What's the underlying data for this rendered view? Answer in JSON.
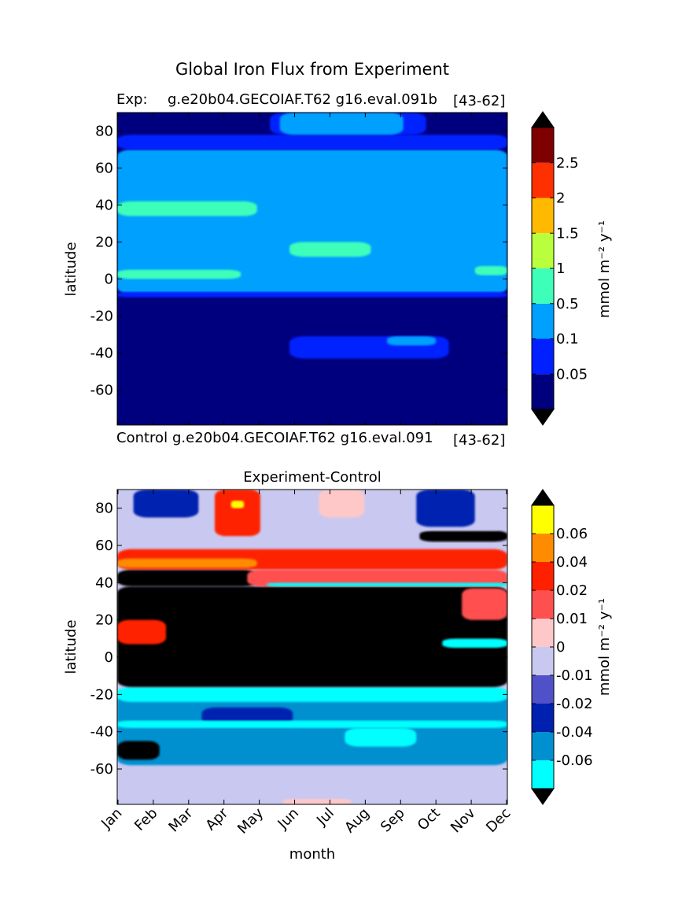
{
  "figure": {
    "suptitle": "Global Iron Flux from Experiment"
  },
  "top": {
    "exp_label": "Exp:",
    "case_name": "g.e20b04.GECOIAF.T62 g16.eval.091b",
    "years": "[43-62]"
  },
  "bottom": {
    "control_label": "Control",
    "case_name": "g.e20b04.GECOIAF.T62 g16.eval.091",
    "years": "[43-62]"
  },
  "chart_data": [
    {
      "type": "heatmap",
      "title": "",
      "xlabel": "",
      "ylabel": "latitude",
      "ylim": [
        -79,
        90
      ],
      "yticks": [
        80,
        60,
        40,
        20,
        0,
        -20,
        -40,
        -60
      ],
      "ytick_labels": [
        "80",
        "60",
        "40",
        "20",
        "0",
        "-20",
        "-40",
        "-60"
      ],
      "colorbar": {
        "label": "mmol m⁻² y⁻¹",
        "levels": [
          0.05,
          0.1,
          0.5,
          1,
          1.5,
          2,
          2.5
        ],
        "tick_labels": [
          "0.05",
          "0.1",
          "0.5",
          "1",
          "1.5",
          "2",
          "2.5"
        ],
        "colors": [
          "#00007f",
          "#0020ff",
          "#00a0ff",
          "#3dffb9",
          "#b9ff3d",
          "#ffb900",
          "#ff3000",
          "#7f0000"
        ],
        "extend": "both"
      },
      "fields": [
        {
          "level_index": 2,
          "x0": 0,
          "x1": 12,
          "y0": -8,
          "y1": 70
        },
        {
          "level_index": 1,
          "x0": 0,
          "x1": 12,
          "y0": -10,
          "y1": -7
        },
        {
          "level_index": 1,
          "x0": 0,
          "x1": 12,
          "y0": 70,
          "y1": 78
        },
        {
          "level_index": 1,
          "x0": 4.7,
          "x1": 9.5,
          "y0": 78,
          "y1": 90
        },
        {
          "level_index": 2,
          "x0": 5,
          "x1": 8.8,
          "y0": 78,
          "y1": 90
        },
        {
          "level_index": 1,
          "x0": 5.3,
          "x1": 10.2,
          "y0": -43,
          "y1": -31
        },
        {
          "level_index": 2,
          "x0": 8.3,
          "x1": 9.8,
          "y0": -36,
          "y1": -31
        },
        {
          "level_index": 3,
          "x0": 0,
          "x1": 4.3,
          "y0": 34,
          "y1": 42
        },
        {
          "level_index": 3,
          "x0": 5.3,
          "x1": 7.8,
          "y0": 12,
          "y1": 20
        },
        {
          "level_index": 3,
          "x0": 0,
          "x1": 3.8,
          "y0": 0,
          "y1": 5
        },
        {
          "level_index": 3,
          "x0": 11,
          "x1": 12,
          "y0": 2,
          "y1": 7
        }
      ]
    },
    {
      "type": "heatmap",
      "title": "Experiment-Control",
      "xlabel": "month",
      "ylabel": "latitude",
      "ylim": [
        -79,
        90
      ],
      "xticks": [
        "Jan",
        "Feb",
        "Mar",
        "Apr",
        "May",
        "Jun",
        "Jul",
        "Aug",
        "Sep",
        "Oct",
        "Nov",
        "Dec"
      ],
      "yticks": [
        80,
        60,
        40,
        20,
        0,
        -20,
        -40,
        -60
      ],
      "ytick_labels": [
        "80",
        "60",
        "40",
        "20",
        "0",
        "-20",
        "-40",
        "-60"
      ],
      "colorbar": {
        "label": "mmol m⁻² y⁻¹",
        "levels": [
          -0.06,
          -0.04,
          -0.02,
          -0.01,
          0,
          0.01,
          0.02,
          0.04,
          0.06
        ],
        "tick_labels": [
          "-0.06",
          "-0.04",
          "-0.02",
          "-0.01",
          "0",
          "0.01",
          "0.02",
          "0.04",
          "0.06"
        ],
        "colors": [
          "#00ffff",
          "#0090d0",
          "#0020b0",
          "#5050c8",
          "#c8c8f0",
          "#ffc8c8",
          "#ff5050",
          "#ff2000",
          "#ff8c00",
          "#ffff00"
        ],
        "under_color": "#000000",
        "extend": "both"
      },
      "fields": [
        {
          "level_index": 4,
          "x0": 0,
          "x1": 12,
          "y0": -79,
          "y1": -58
        },
        {
          "level_index": 5,
          "x0": 5.1,
          "x1": 7.2,
          "y0": -79,
          "y1": -76
        },
        {
          "level_index": 1,
          "x0": 0,
          "x1": 12,
          "y0": -58,
          "y1": -20
        },
        {
          "level_index": 0,
          "x0": 0,
          "x1": 12,
          "y0": -24,
          "y1": -16
        },
        {
          "level_index": 2,
          "x0": 2.6,
          "x1": 5.4,
          "y0": -36,
          "y1": -27
        },
        {
          "level_index": 0,
          "x0": 7,
          "x1": 9.2,
          "y0": -48,
          "y1": -38
        },
        {
          "level_index": 0,
          "x0": 0,
          "x1": 12,
          "y0": -38,
          "y1": -34
        },
        {
          "level_index": -1,
          "x0": 0,
          "x1": 1.3,
          "y0": -55,
          "y1": -45
        },
        {
          "level_index": -1,
          "x0": 0,
          "x1": 12,
          "y0": -16,
          "y1": 38
        },
        {
          "level_index": -1,
          "x0": 0,
          "x1": 4.3,
          "y0": 38,
          "y1": 47
        },
        {
          "level_index": -1,
          "x0": 9.3,
          "x1": 12,
          "y0": 62,
          "y1": 68
        },
        {
          "level_index": 7,
          "x0": 0,
          "x1": 12,
          "y0": 47,
          "y1": 58
        },
        {
          "level_index": 8,
          "x0": 0,
          "x1": 4.3,
          "y0": 48,
          "y1": 53
        },
        {
          "level_index": 6,
          "x0": 4,
          "x1": 12,
          "y0": 38,
          "y1": 47
        },
        {
          "level_index": 0,
          "x0": 4.6,
          "x1": 12,
          "y0": 38,
          "y1": 40
        },
        {
          "level_index": 4,
          "x0": 0,
          "x1": 12,
          "y0": 68,
          "y1": 90
        },
        {
          "level_index": 2,
          "x0": 0.5,
          "x1": 2.5,
          "y0": 75,
          "y1": 90
        },
        {
          "level_index": 2,
          "x0": 9.2,
          "x1": 11,
          "y0": 70,
          "y1": 90
        },
        {
          "level_index": 5,
          "x0": 6.2,
          "x1": 7.6,
          "y0": 75,
          "y1": 90
        },
        {
          "level_index": 7,
          "x0": 3,
          "x1": 4.4,
          "y0": 65,
          "y1": 90
        },
        {
          "level_index": 9,
          "x0": 3.5,
          "x1": 3.9,
          "y0": 80,
          "y1": 84
        },
        {
          "level_index": 7,
          "x0": 0,
          "x1": 1.5,
          "y0": 7,
          "y1": 20
        },
        {
          "level_index": 6,
          "x0": 10.6,
          "x1": 12,
          "y0": 20,
          "y1": 37
        },
        {
          "level_index": 0,
          "x0": 10,
          "x1": 12,
          "y0": 5,
          "y1": 10
        }
      ]
    }
  ]
}
